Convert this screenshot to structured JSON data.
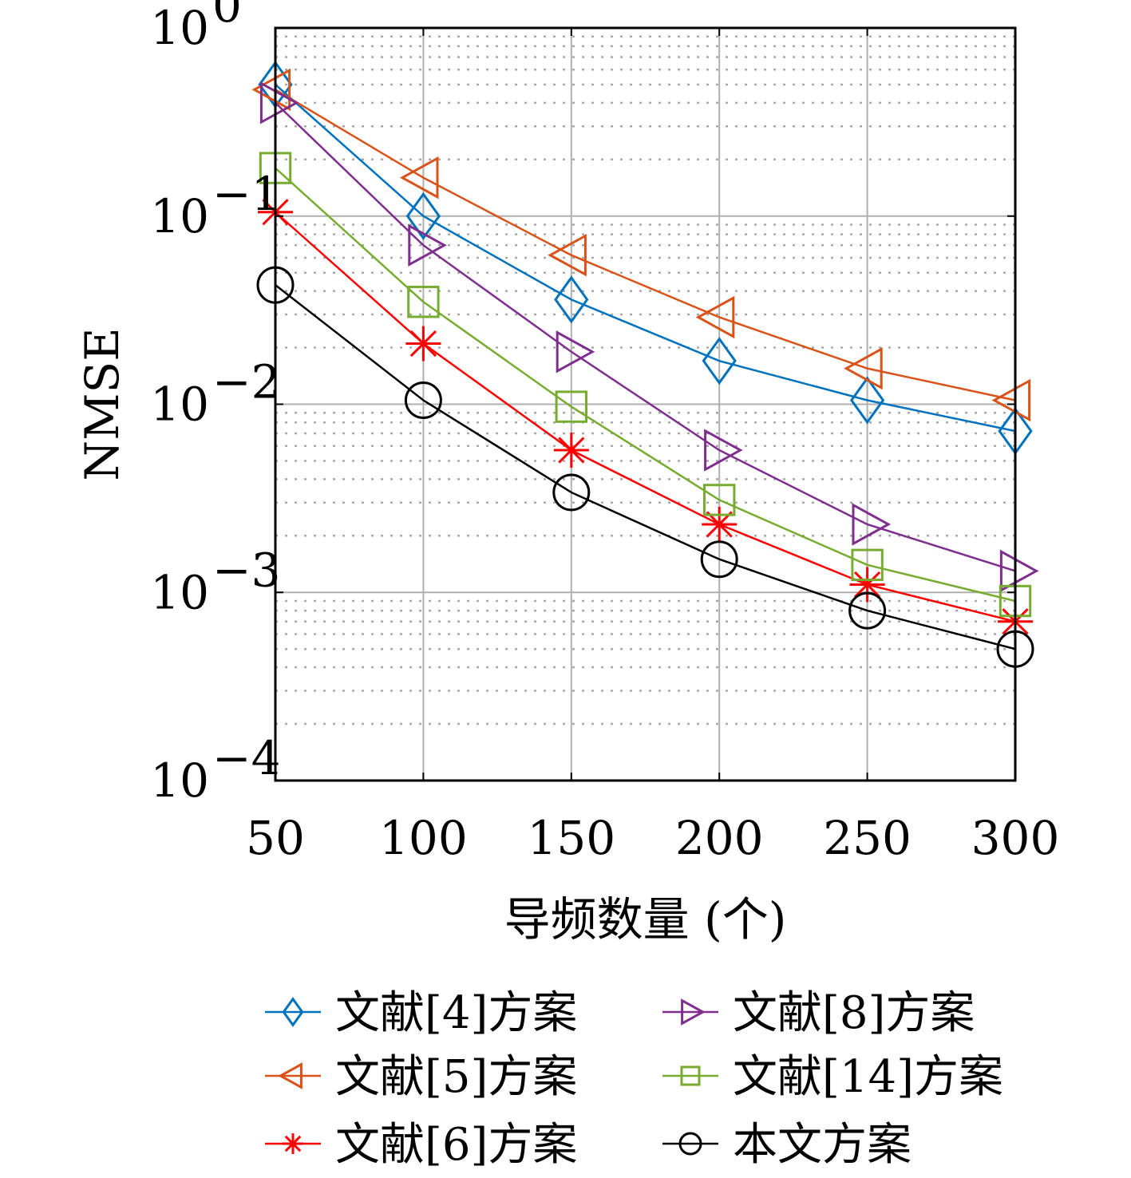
{
  "chart_data": {
    "type": "line",
    "xlabel": "导频数量 (个)",
    "ylabel": "NMSE",
    "x": [
      50,
      100,
      150,
      200,
      250,
      300
    ],
    "xlim": [
      50,
      300
    ],
    "x_ticks": [
      "50",
      "100",
      "150",
      "200",
      "250",
      "300"
    ],
    "ylim": [
      0.0001,
      1
    ],
    "y_scale": "log",
    "y_ticks": [
      {
        "base": "10",
        "exp": "0"
      },
      {
        "base": "10",
        "exp": "−1"
      },
      {
        "base": "10",
        "exp": "−2"
      },
      {
        "base": "10",
        "exp": "−3"
      },
      {
        "base": "10",
        "exp": "−4"
      }
    ],
    "grid": true,
    "legend_position": "bottom",
    "series": [
      {
        "name": "文献[4]方案",
        "color": "#0072BD",
        "marker": "diamond",
        "values": [
          0.5,
          0.1,
          0.036,
          0.017,
          0.0105,
          0.0072
        ]
      },
      {
        "name": "文献[5]方案",
        "color": "#D95319",
        "marker": "triangle-left",
        "values": [
          0.47,
          0.16,
          0.062,
          0.029,
          0.0155,
          0.0105
        ]
      },
      {
        "name": "文献[6]方案",
        "color": "#FF0000",
        "marker": "asterisk",
        "values": [
          0.105,
          0.021,
          0.0057,
          0.0023,
          0.0011,
          0.0007
        ]
      },
      {
        "name": "文献[8]方案",
        "color": "#7E2F8E",
        "marker": "triangle-right",
        "values": [
          0.4,
          0.07,
          0.019,
          0.0057,
          0.0023,
          0.0013
        ]
      },
      {
        "name": "文献[14]方案",
        "color": "#77AC30",
        "marker": "square",
        "values": [
          0.18,
          0.035,
          0.0097,
          0.0031,
          0.0014,
          0.0009
        ]
      },
      {
        "name": "本文方案",
        "color": "#000000",
        "marker": "circle",
        "values": [
          0.043,
          0.0105,
          0.0034,
          0.0015,
          0.0008,
          0.0005
        ]
      }
    ]
  }
}
